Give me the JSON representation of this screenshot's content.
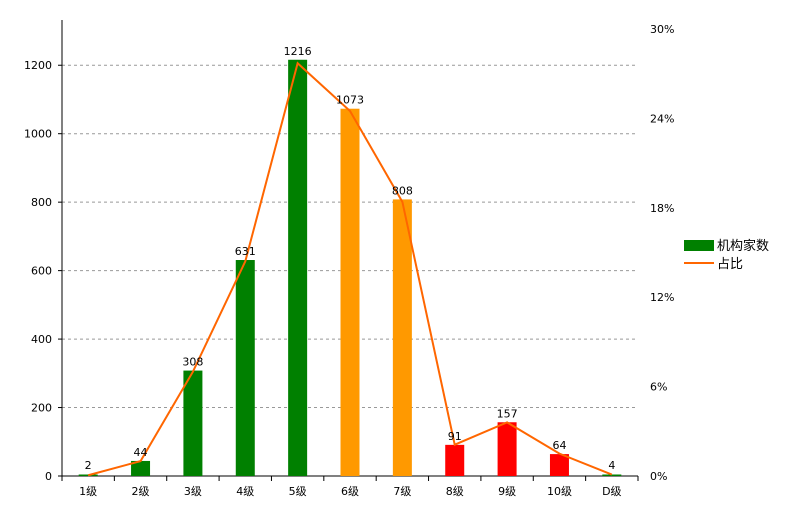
{
  "chart_data": {
    "type": "bar",
    "categories": [
      "1级",
      "2级",
      "3级",
      "4级",
      "5级",
      "6级",
      "7级",
      "8级",
      "9级",
      "10级",
      "D级"
    ],
    "series": [
      {
        "name": "机构家数",
        "type": "bar",
        "axis": "left",
        "values": [
          2,
          44,
          308,
          631,
          1216,
          1073,
          808,
          91,
          157,
          64,
          4
        ],
        "bar_colors": [
          "#008000",
          "#008000",
          "#008000",
          "#008000",
          "#008000",
          "#FF9900",
          "#FF9900",
          "#FF0000",
          "#FF0000",
          "#FF0000",
          "#008000"
        ],
        "data_labels": [
          "2",
          "44",
          "308",
          "631",
          "1216",
          "1073",
          "808",
          "91",
          "157",
          "64",
          "4"
        ]
      },
      {
        "name": "占比",
        "type": "line",
        "axis": "right",
        "color": "#FF6600",
        "values": [
          0.05,
          1.0,
          7.0,
          14.4,
          27.7,
          24.5,
          18.4,
          2.1,
          3.6,
          1.5,
          0.1
        ]
      }
    ],
    "left_axis": {
      "ylim": [
        0,
        1350
      ],
      "ticks": [
        0,
        200,
        400,
        600,
        800,
        1000,
        1200
      ]
    },
    "right_axis": {
      "ylim": [
        0,
        30
      ],
      "ticks": [
        0,
        6,
        12,
        18,
        24,
        30
      ],
      "tick_labels": [
        "0%",
        "6%",
        "12%",
        "18%",
        "24%",
        "30%"
      ]
    },
    "grid": true,
    "legend_position": "right"
  }
}
